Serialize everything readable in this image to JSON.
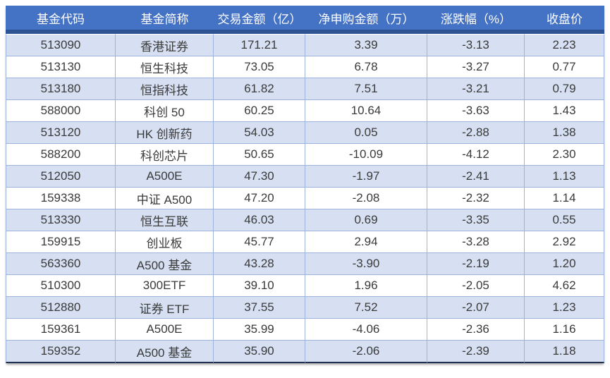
{
  "chart_data": {
    "type": "table",
    "columns": [
      "基金代码",
      "基金简称",
      "交易金额（亿）",
      "净申购金额（万）",
      "涨跌幅（%）",
      "收盘价"
    ],
    "rows": [
      [
        "513090",
        "香港证券",
        "171.21",
        "3.39",
        "-3.13",
        "2.23"
      ],
      [
        "513130",
        "恒生科技",
        "73.05",
        "6.78",
        "-3.27",
        "0.77"
      ],
      [
        "513180",
        "恒指科技",
        "61.82",
        "7.51",
        "-3.21",
        "0.79"
      ],
      [
        "588000",
        "科创 50",
        "60.25",
        "10.64",
        "-3.63",
        "1.43"
      ],
      [
        "513120",
        "HK 创新药",
        "54.03",
        "0.05",
        "-2.88",
        "1.38"
      ],
      [
        "588200",
        "科创芯片",
        "50.65",
        "-10.09",
        "-4.12",
        "2.30"
      ],
      [
        "512050",
        "A500E",
        "47.30",
        "-1.97",
        "-2.41",
        "1.13"
      ],
      [
        "159338",
        "中证 A500",
        "47.20",
        "-2.08",
        "-2.32",
        "1.14"
      ],
      [
        "513330",
        "恒生互联",
        "46.03",
        "0.69",
        "-3.35",
        "0.55"
      ],
      [
        "159915",
        "创业板",
        "45.77",
        "2.94",
        "-3.28",
        "2.92"
      ],
      [
        "563360",
        "A500 基金",
        "43.28",
        "-3.90",
        "-2.19",
        "1.20"
      ],
      [
        "510300",
        "300ETF",
        "39.10",
        "1.96",
        "-2.05",
        "4.62"
      ],
      [
        "512880",
        "证券 ETF",
        "37.55",
        "7.52",
        "-2.07",
        "1.23"
      ],
      [
        "159361",
        "A500E",
        "35.99",
        "-4.06",
        "-2.36",
        "1.16"
      ],
      [
        "159352",
        "A500 基金",
        "35.90",
        "-2.06",
        "-2.39",
        "1.18"
      ]
    ]
  },
  "colors": {
    "header_bg": "#4472C4",
    "header_band": "#2E5395",
    "header_text": "#FFFFFF",
    "row_bg": "#FFFFFF",
    "row_alt_bg": "#D6E0F2",
    "grid_line": "#9DB3DC",
    "bottom_border": "#1F3050",
    "cell_text": "#3A3A3A"
  }
}
